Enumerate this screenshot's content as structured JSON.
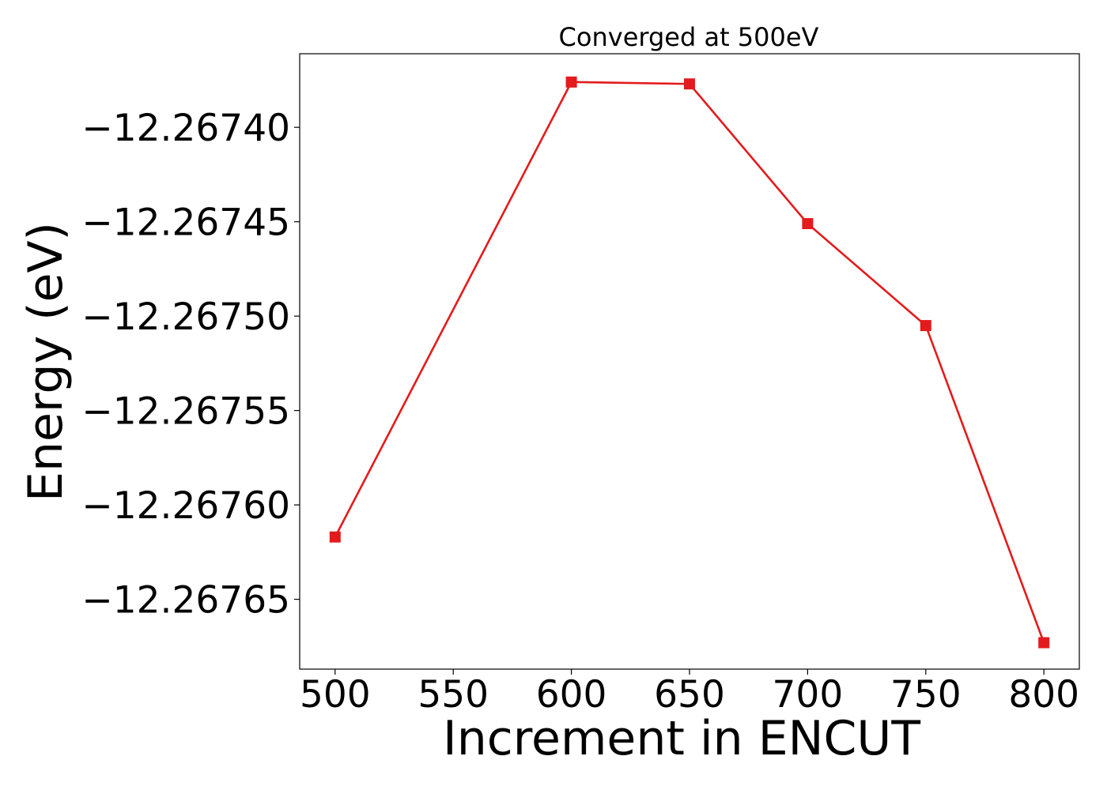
{
  "chart_data": {
    "type": "line",
    "title": "Converged at 500eV",
    "xlabel": "Increment in ENCUT",
    "ylabel": "Energy (eV)",
    "x": [
      500,
      600,
      650,
      700,
      750,
      800
    ],
    "series": [
      {
        "values": [
          -12.267617,
          -12.267376,
          -12.267377,
          -12.267451,
          -12.267505,
          -12.267673
        ],
        "color": "#e41a1c",
        "marker": "square"
      }
    ],
    "xlim": [
      485,
      815
    ],
    "ylim": [
      -12.267687,
      -12.267361
    ],
    "xticks": [
      500,
      550,
      600,
      650,
      700,
      750,
      800
    ],
    "xtick_labels": [
      "500",
      "550",
      "600",
      "650",
      "700",
      "750",
      "800"
    ],
    "yticks": [
      -12.2674,
      -12.26745,
      -12.2675,
      -12.26755,
      -12.2676,
      -12.26765
    ],
    "ytick_labels": [
      "−12.26740",
      "−12.26745",
      "−12.26750",
      "−12.26755",
      "−12.26760",
      "−12.26765"
    ],
    "grid": false,
    "legend": "none"
  }
}
